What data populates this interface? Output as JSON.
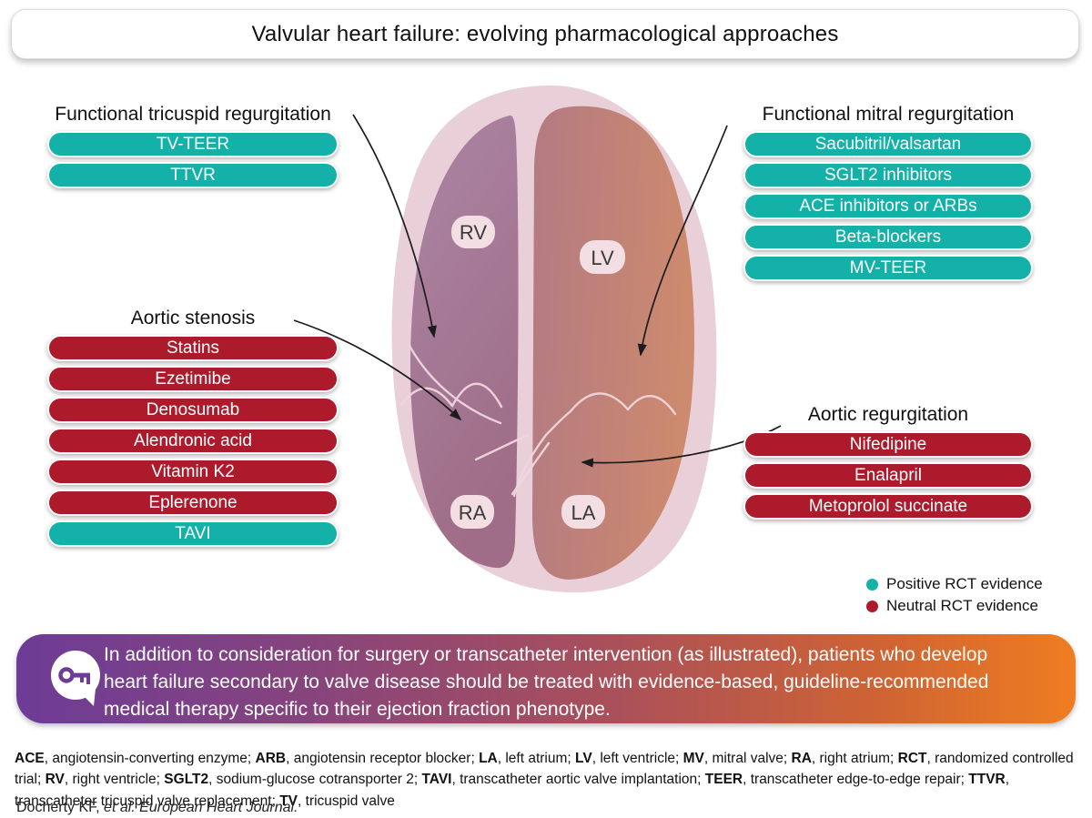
{
  "title": "Valvular heart failure: evolving pharmacological approaches",
  "colors": {
    "positive_evidence": "#14b1a9",
    "neutral_evidence": "#ad1a2c",
    "banner_gradient_start": "#6d3c96",
    "banner_gradient_end": "#ef7d21"
  },
  "groups": [
    {
      "heading": "Functional tricuspid regurgitation",
      "items": [
        {
          "label": "TV-TEER",
          "evidence": "positive"
        },
        {
          "label": "TTVR",
          "evidence": "positive"
        }
      ]
    },
    {
      "heading": "Functional mitral regurgitation",
      "items": [
        {
          "label": "Sacubitril/valsartan",
          "evidence": "positive"
        },
        {
          "label": "SGLT2 inhibitors",
          "evidence": "positive"
        },
        {
          "label": "ACE inhibitors or ARBs",
          "evidence": "positive"
        },
        {
          "label": "Beta-blockers",
          "evidence": "positive"
        },
        {
          "label": "MV-TEER",
          "evidence": "positive"
        }
      ]
    },
    {
      "heading": "Aortic stenosis",
      "items": [
        {
          "label": "Statins",
          "evidence": "neutral"
        },
        {
          "label": "Ezetimibe",
          "evidence": "neutral"
        },
        {
          "label": "Denosumab",
          "evidence": "neutral"
        },
        {
          "label": "Alendronic acid",
          "evidence": "neutral"
        },
        {
          "label": "Vitamin K2",
          "evidence": "neutral"
        },
        {
          "label": "Eplerenone",
          "evidence": "neutral"
        },
        {
          "label": "TAVI",
          "evidence": "positive"
        }
      ]
    },
    {
      "heading": "Aortic regurgitation",
      "items": [
        {
          "label": "Nifedipine",
          "evidence": "neutral"
        },
        {
          "label": "Enalapril",
          "evidence": "neutral"
        },
        {
          "label": "Metoprolol succinate",
          "evidence": "neutral"
        }
      ]
    }
  ],
  "heart": {
    "labels": {
      "rv": "RV",
      "lv": "LV",
      "ra": "RA",
      "la": "LA"
    }
  },
  "legend": [
    {
      "label": "Positive RCT evidence",
      "evidence": "positive"
    },
    {
      "label": "Neutral RCT evidence",
      "evidence": "neutral"
    }
  ],
  "banner": {
    "icon": "key-speech-bubble-icon",
    "text": "In addition to consideration for surgery or transcatheter intervention (as illustrated), patients who develop heart failure secondary to valve disease should be treated with evidence-based, guideline-recommended medical therapy specific to their ejection fraction phenotype."
  },
  "footer": {
    "abbreviations": [
      [
        "ACE",
        "angiotensin-converting enzyme"
      ],
      [
        "ARB",
        "angiotensin receptor blocker"
      ],
      [
        "LA",
        "left atrium"
      ],
      [
        "LV",
        "left ventricle"
      ],
      [
        "MV",
        "mitral valve"
      ],
      [
        "RA",
        "right atrium"
      ],
      [
        "RCT",
        "randomized controlled trial"
      ],
      [
        "RV",
        "right ventricle"
      ],
      [
        "SGLT2",
        "sodium-glucose cotransporter 2"
      ],
      [
        "TAVI",
        "transcatheter aortic valve implantation"
      ],
      [
        "TEER",
        "transcatheter edge-to-edge repair"
      ],
      [
        "TTVR",
        "transcatheter tricuspid valve replacement"
      ],
      [
        "TV",
        "tricuspid valve"
      ]
    ],
    "citation_authors": "Docherty KF,",
    "citation_source": " et al. European Heart Journal."
  }
}
